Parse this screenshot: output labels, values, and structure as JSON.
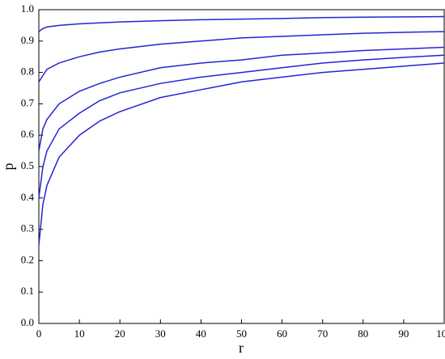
{
  "chart_data": {
    "type": "line",
    "x_label": "r",
    "y_label": "p",
    "x": [
      0,
      1,
      2,
      5,
      10,
      15,
      20,
      30,
      40,
      50,
      60,
      70,
      80,
      90,
      100
    ],
    "series": [
      {
        "color": "#2323d6",
        "values": [
          0.93,
          0.94,
          0.945,
          0.95,
          0.955,
          0.958,
          0.961,
          0.965,
          0.968,
          0.97,
          0.972,
          0.975,
          0.976,
          0.977,
          0.978
        ]
      },
      {
        "color": "#2323d6",
        "values": [
          0.77,
          0.79,
          0.81,
          0.83,
          0.85,
          0.865,
          0.875,
          0.89,
          0.9,
          0.91,
          0.915,
          0.92,
          0.925,
          0.928,
          0.93
        ]
      },
      {
        "color": "#2323d6",
        "values": [
          0.55,
          0.62,
          0.65,
          0.7,
          0.74,
          0.765,
          0.785,
          0.815,
          0.83,
          0.84,
          0.855,
          0.862,
          0.87,
          0.875,
          0.88
        ]
      },
      {
        "color": "#2323d6",
        "values": [
          0.4,
          0.5,
          0.55,
          0.62,
          0.67,
          0.71,
          0.735,
          0.765,
          0.785,
          0.8,
          0.815,
          0.83,
          0.84,
          0.848,
          0.855
        ]
      },
      {
        "color": "#2323d6",
        "values": [
          0.25,
          0.38,
          0.44,
          0.53,
          0.6,
          0.645,
          0.675,
          0.72,
          0.745,
          0.77,
          0.785,
          0.8,
          0.81,
          0.82,
          0.83
        ]
      }
    ],
    "xlim": [
      0,
      100
    ],
    "ylim": [
      0,
      1
    ],
    "xticks": [
      0,
      10,
      20,
      30,
      40,
      50,
      60,
      70,
      80,
      90,
      100
    ],
    "yticks": [
      {
        "value": 0,
        "label": "0.0"
      },
      0.1,
      0.2,
      0.3,
      0.4,
      0.5,
      0.6,
      0.7,
      0.8,
      0.9,
      {
        "value": 1,
        "label": "1.0"
      }
    ],
    "grid": false
  }
}
